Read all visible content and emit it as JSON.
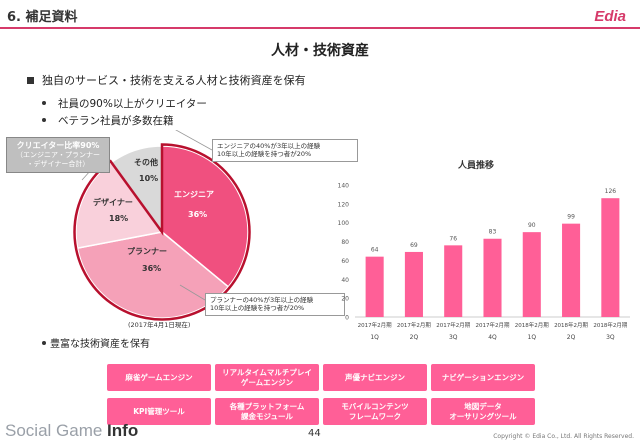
{
  "header": {
    "section": "6. 補足資料",
    "logo": "Edia"
  },
  "slide_title": "人材・技術資産",
  "bullet_main": "独自のサービス・技術を支える人材と技術資産を保有",
  "sub_bullets": [
    "社員の90%以上がクリエイター",
    "ベテラン社員が多数在籍"
  ],
  "pie": {
    "slices": [
      {
        "label": "エンジニア",
        "pct_label": "36%",
        "value": 36,
        "color": "#f0507f"
      },
      {
        "label": "プランナー",
        "pct_label": "36%",
        "value": 36,
        "color": "#f5a1b8"
      },
      {
        "label": "デザイナー",
        "pct_label": "18%",
        "value": 18,
        "color": "#f9d0db"
      },
      {
        "label": "その他",
        "pct_label": "10%",
        "value": 10,
        "color": "#d9d9d9"
      }
    ],
    "creator_title": "クリエイター比率90%",
    "creator_sub1": "（エンジニア・プランナー",
    "creator_sub2": "・デザイナー合計）",
    "engineer_note1": "エンジニアの40%が3年以上の経験",
    "engineer_note2": "10年以上の経験を持つ者が20%",
    "planner_note1": "プランナーの40%が3年以上の経験",
    "planner_note2": "10年以上の経験を持つ者が20%",
    "as_of": "(2017年4月1日現在)"
  },
  "chart_data": {
    "type": "bar",
    "title": "人員推移",
    "categories": [
      "2017年2月期 1Q",
      "2017年2月期 2Q",
      "2017年2月期 3Q",
      "2017年2月期 4Q",
      "2018年2月期 1Q",
      "2018年2月期 2Q",
      "2018年2月期 3Q"
    ],
    "tick_top": [
      "2017年2月期",
      "2017年2月期",
      "2017年2月期",
      "2017年2月期",
      "2018年2月期",
      "2018年2月期",
      "2018年2月期"
    ],
    "tick_bottom": [
      "1Q",
      "2Q",
      "3Q",
      "4Q",
      "1Q",
      "2Q",
      "3Q"
    ],
    "values": [
      64,
      69,
      76,
      83,
      90,
      99,
      126
    ],
    "ylim": [
      0,
      140
    ],
    "yticks": [
      0,
      20,
      40,
      60,
      80,
      100,
      120,
      140
    ],
    "grid": false,
    "bar_color": "#ff5f97"
  },
  "tech_bullet": "豊富な技術資産を保有",
  "tech_buttons": [
    "麻雀ゲームエンジン",
    "リアルタイムマルチプレイ\nゲームエンジン",
    "声優ナビエンジン",
    "ナビゲーションエンジン",
    "KPI管理ツール",
    "各種プラットフォーム\n課金モジュール",
    "モバイルコンテンツ\nフレームワーク",
    "地図データ\nオーサリングツール"
  ],
  "footer": {
    "brand_light": "Social Game ",
    "brand_bold": "Info",
    "page": "44",
    "copyright": "Copyright © Edia Co., Ltd. All Rights Reserved."
  }
}
